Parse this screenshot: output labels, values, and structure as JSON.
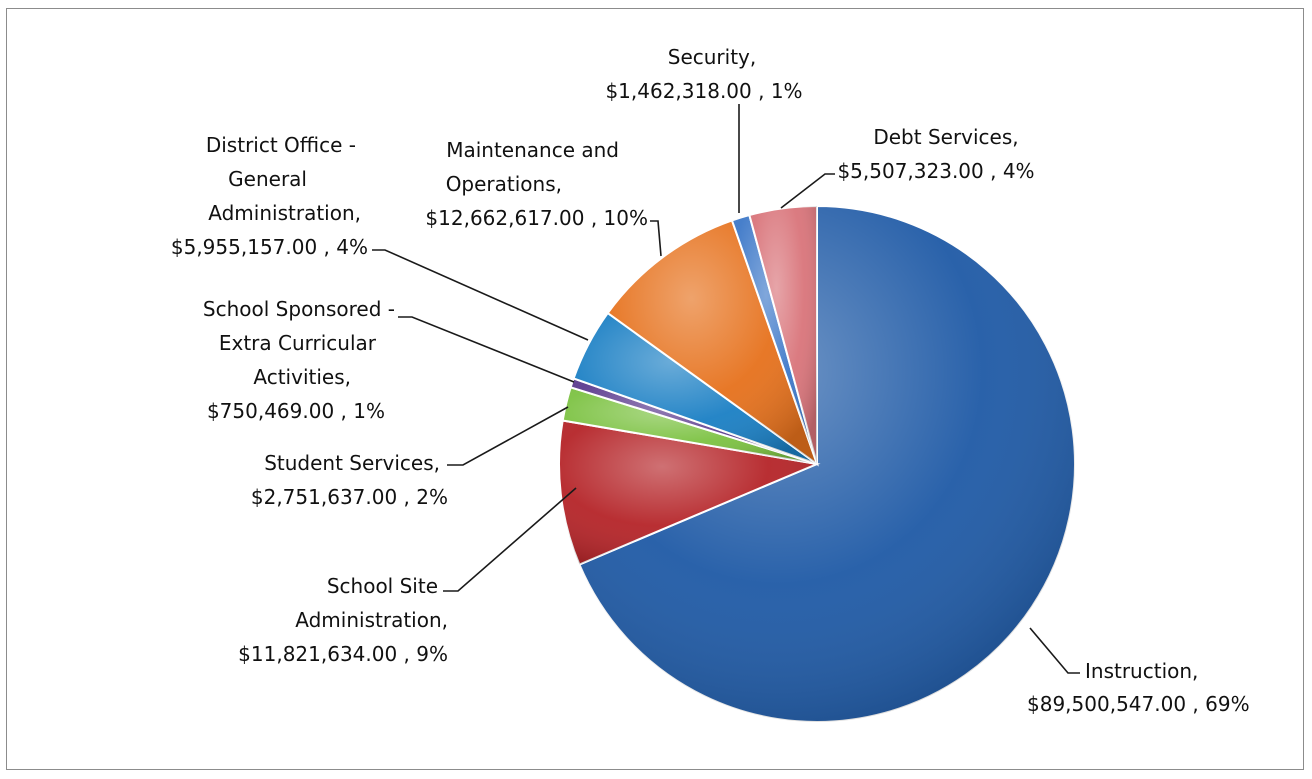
{
  "chart_data": {
    "type": "pie",
    "start_angle_deg": 0,
    "direction": "clockwise",
    "slices": [
      {
        "name": "Instruction",
        "label_name": "Instruction,",
        "label_value": "$89,500,547.00 , 69%",
        "value": 89500547.0,
        "percent": 69,
        "color": "#1f5aa6"
      },
      {
        "name": "School Site Administration",
        "label_name": "School Site Administration,",
        "label_value": "$11,821,634.00 , 9%",
        "value": 11821634.0,
        "percent": 9,
        "color": "#b52428"
      },
      {
        "name": "Student Services",
        "label_name": "Student Services,",
        "label_value": "$2,751,637.00 , 2%",
        "value": 2751637.0,
        "percent": 2,
        "color": "#7cc242"
      },
      {
        "name": "School Sponsored - Extra Curricular Activities",
        "label_name": "School Sponsored - Extra Curricular Activities,",
        "label_value": "$750,469.00 , 1%",
        "value": 750469.0,
        "percent": 1,
        "color": "#5b3a8e"
      },
      {
        "name": "District Office - General Administration",
        "label_name": "District Office - General Administration,",
        "label_value": "$5,955,157.00 , 4%",
        "value": 5955157.0,
        "percent": 4,
        "color": "#1a7fc4"
      },
      {
        "name": "Maintenance and Operations",
        "label_name": "Maintenance and Operations,",
        "label_value": "$12,662,617.00 , 10%",
        "value": 12662617.0,
        "percent": 10,
        "color": "#e6711c"
      },
      {
        "name": "Security",
        "label_name": "Security,",
        "label_value": "$1,462,318.00 , 1%",
        "value": 1462318.0,
        "percent": 1,
        "color": "#3d78c8"
      },
      {
        "name": "Debt Services",
        "label_name": "Debt Services,",
        "label_value": "$5,507,323.00 , 4%",
        "value": 5507323.0,
        "percent": 4,
        "color": "#d9747a"
      }
    ]
  }
}
